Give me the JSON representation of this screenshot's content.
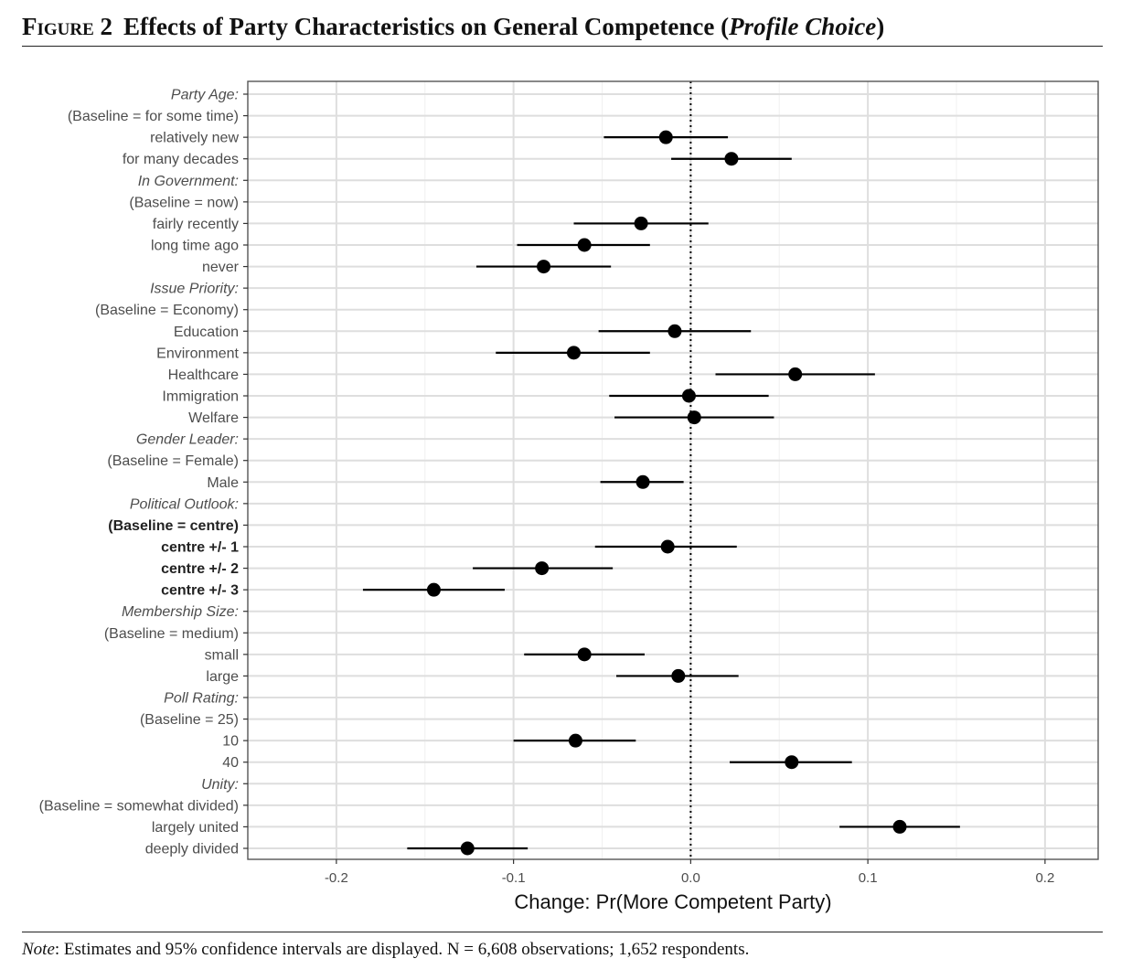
{
  "figure": {
    "label": "Figure 2",
    "title_main": "Effects of Party Characteristics on General Competence (",
    "title_italic": "Profile Choice",
    "title_end": ")"
  },
  "note": {
    "label": "Note",
    "text": ": Estimates and 95% confidence intervals are displayed. N = 6,608 observations; 1,652 respondents."
  },
  "chart_data": {
    "type": "scatter",
    "subtype": "coefficient-plot-with-95pct-ci",
    "xlabel": "Change: Pr(More Competent Party)",
    "xlim": [
      -0.25,
      0.23
    ],
    "xticks": [
      -0.2,
      -0.1,
      0.0,
      0.1,
      0.2
    ],
    "xtick_labels": [
      "-0.2",
      "-0.1",
      "0.0",
      "0.1",
      "0.2"
    ],
    "reference_line": 0.0,
    "grid": true,
    "rows": [
      {
        "label": "Party Age:",
        "style": "italic"
      },
      {
        "label": "(Baseline = for some time)",
        "style": "normal"
      },
      {
        "label": "relatively new",
        "style": "normal",
        "est": -0.014,
        "lo": -0.049,
        "hi": 0.021
      },
      {
        "label": "for many decades",
        "style": "normal",
        "est": 0.023,
        "lo": -0.011,
        "hi": 0.057
      },
      {
        "label": "In Government:",
        "style": "italic"
      },
      {
        "label": "(Baseline = now)",
        "style": "normal"
      },
      {
        "label": "fairly recently",
        "style": "normal",
        "est": -0.028,
        "lo": -0.066,
        "hi": 0.01
      },
      {
        "label": "long time ago",
        "style": "normal",
        "est": -0.06,
        "lo": -0.098,
        "hi": -0.023
      },
      {
        "label": "never",
        "style": "normal",
        "est": -0.083,
        "lo": -0.121,
        "hi": -0.045
      },
      {
        "label": "Issue Priority:",
        "style": "italic"
      },
      {
        "label": "(Baseline = Economy)",
        "style": "normal"
      },
      {
        "label": "Education",
        "style": "normal",
        "est": -0.009,
        "lo": -0.052,
        "hi": 0.034
      },
      {
        "label": "Environment",
        "style": "normal",
        "est": -0.066,
        "lo": -0.11,
        "hi": -0.023
      },
      {
        "label": "Healthcare",
        "style": "normal",
        "est": 0.059,
        "lo": 0.014,
        "hi": 0.104
      },
      {
        "label": "Immigration",
        "style": "normal",
        "est": -0.001,
        "lo": -0.046,
        "hi": 0.044
      },
      {
        "label": "Welfare",
        "style": "normal",
        "est": 0.002,
        "lo": -0.043,
        "hi": 0.047
      },
      {
        "label": "Gender Leader:",
        "style": "italic"
      },
      {
        "label": "(Baseline = Female)",
        "style": "normal"
      },
      {
        "label": "Male",
        "style": "normal",
        "est": -0.027,
        "lo": -0.051,
        "hi": -0.004
      },
      {
        "label": "Political Outlook:",
        "style": "italic"
      },
      {
        "label": "(Baseline = centre)",
        "style": "bold"
      },
      {
        "label": "centre +/- 1",
        "style": "bold",
        "est": -0.013,
        "lo": -0.054,
        "hi": 0.026
      },
      {
        "label": "centre +/- 2",
        "style": "bold",
        "est": -0.084,
        "lo": -0.123,
        "hi": -0.044
      },
      {
        "label": "centre +/- 3",
        "style": "bold",
        "est": -0.145,
        "lo": -0.185,
        "hi": -0.105
      },
      {
        "label": "Membership Size:",
        "style": "italic"
      },
      {
        "label": "(Baseline = medium)",
        "style": "normal"
      },
      {
        "label": "small",
        "style": "normal",
        "est": -0.06,
        "lo": -0.094,
        "hi": -0.026
      },
      {
        "label": "large",
        "style": "normal",
        "est": -0.007,
        "lo": -0.042,
        "hi": 0.027
      },
      {
        "label": "Poll Rating:",
        "style": "italic"
      },
      {
        "label": "(Baseline = 25)",
        "style": "normal"
      },
      {
        "label": "10",
        "style": "normal",
        "est": -0.065,
        "lo": -0.1,
        "hi": -0.031
      },
      {
        "label": "40",
        "style": "normal",
        "est": 0.057,
        "lo": 0.022,
        "hi": 0.091
      },
      {
        "label": "Unity:",
        "style": "italic"
      },
      {
        "label": "(Baseline = somewhat divided)",
        "style": "normal"
      },
      {
        "label": "largely united",
        "style": "normal",
        "est": 0.118,
        "lo": 0.084,
        "hi": 0.152
      },
      {
        "label": "deeply divided",
        "style": "normal",
        "est": -0.126,
        "lo": -0.16,
        "hi": -0.092
      }
    ]
  },
  "colors": {
    "panel_border": "#555555",
    "major_grid": "#dedede",
    "minor_grid": "#f0f0f0",
    "point": "#000000",
    "axis_text": "#4d4d4d"
  }
}
